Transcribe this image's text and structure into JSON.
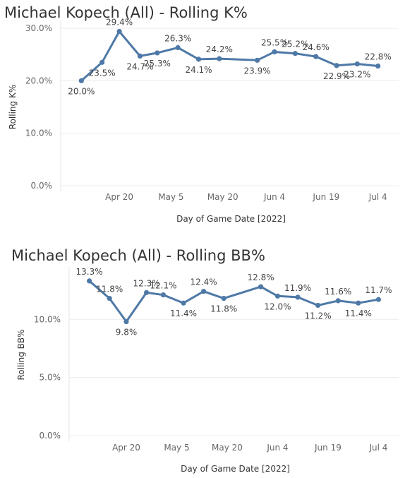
{
  "chart_data": [
    {
      "type": "line",
      "title": "Michael Kopech (All) - Rolling K%",
      "xlabel": "Day of Game Date [2022]",
      "ylabel": "Rolling K%",
      "x_tick_labels": [
        "Apr 20",
        "May 5",
        "May 20",
        "Jun 4",
        "Jun 19",
        "Jul 4"
      ],
      "y_tick_labels": [
        "0.0%",
        "10.0%",
        "20.0%",
        "30.0%"
      ],
      "ylim": [
        0,
        30
      ],
      "grid": true,
      "color": "#4e79a7",
      "series": [
        {
          "x": [
            "2022-04-09",
            "2022-04-15",
            "2022-04-20",
            "2022-04-26",
            "2022-05-01",
            "2022-05-07",
            "2022-05-13",
            "2022-05-19",
            "2022-05-30",
            "2022-06-04",
            "2022-06-10",
            "2022-06-16",
            "2022-06-22",
            "2022-06-28",
            "2022-07-04"
          ],
          "values": [
            20.0,
            23.5,
            29.4,
            24.7,
            25.3,
            26.3,
            24.1,
            24.2,
            23.9,
            25.5,
            25.2,
            24.6,
            22.9,
            23.2,
            22.8
          ],
          "labels": [
            "20.0%",
            "23.5%",
            "29.4%",
            "24.7%",
            "25.3%",
            "26.3%",
            "24.1%",
            "24.2%",
            "23.9%",
            "25.5%",
            "25.2%",
            "24.6%",
            "22.9%",
            "23.2%",
            "22.8%"
          ]
        }
      ]
    },
    {
      "type": "line",
      "title": "Michael Kopech (All) - Rolling BB%",
      "xlabel": "Day of Game Date [2022]",
      "ylabel": "Rolling BB%",
      "x_tick_labels": [
        "Apr 20",
        "May 5",
        "May 20",
        "Jun 4",
        "Jun 19",
        "Jul 4"
      ],
      "y_tick_labels": [
        "0.0%",
        "5.0%",
        "10.0%"
      ],
      "ylim": [
        0,
        13.9
      ],
      "grid": true,
      "color": "#4e79a7",
      "series": [
        {
          "x": [
            "2022-04-09",
            "2022-04-15",
            "2022-04-20",
            "2022-04-26",
            "2022-05-01",
            "2022-05-07",
            "2022-05-13",
            "2022-05-19",
            "2022-05-30",
            "2022-06-04",
            "2022-06-10",
            "2022-06-16",
            "2022-06-22",
            "2022-06-28",
            "2022-07-04"
          ],
          "values": [
            13.3,
            11.8,
            9.8,
            12.3,
            12.1,
            11.4,
            12.4,
            11.8,
            12.8,
            12.0,
            11.9,
            11.2,
            11.6,
            11.4,
            11.7
          ],
          "labels": [
            "13.3%",
            "11.8%",
            "9.8%",
            "12.3%",
            "12.1%",
            "11.4%",
            "12.4%",
            "11.8%",
            "12.8%",
            "12.0%",
            "11.9%",
            "11.2%",
            "11.6%",
            "11.4%",
            "11.7%"
          ]
        }
      ]
    }
  ]
}
